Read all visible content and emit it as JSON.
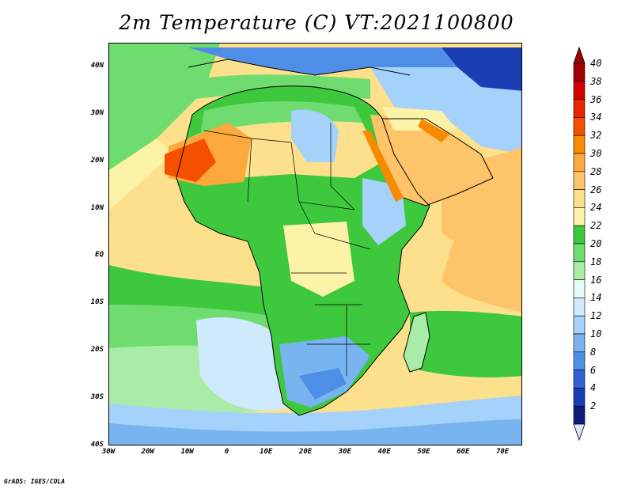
{
  "title": "2m Temperature (C) VT:2021100800",
  "credit": "GrADS: IGES/COLA",
  "map": {
    "lon_range": [
      -30,
      75
    ],
    "lat_range": [
      -40,
      45
    ],
    "lat_ticks": [
      {
        "value": 40,
        "label": "40N"
      },
      {
        "value": 30,
        "label": "30N"
      },
      {
        "value": 20,
        "label": "20N"
      },
      {
        "value": 10,
        "label": "10N"
      },
      {
        "value": 0,
        "label": "EQ"
      },
      {
        "value": -10,
        "label": "10S"
      },
      {
        "value": -20,
        "label": "20S"
      },
      {
        "value": -30,
        "label": "30S"
      },
      {
        "value": -40,
        "label": "40S"
      }
    ],
    "lon_ticks": [
      {
        "value": -30,
        "label": "30W"
      },
      {
        "value": -20,
        "label": "20W"
      },
      {
        "value": -10,
        "label": "10W"
      },
      {
        "value": 0,
        "label": "0"
      },
      {
        "value": 10,
        "label": "10E"
      },
      {
        "value": 20,
        "label": "20E"
      },
      {
        "value": 30,
        "label": "30E"
      },
      {
        "value": 40,
        "label": "40E"
      },
      {
        "value": 50,
        "label": "50E"
      },
      {
        "value": 60,
        "label": "60E"
      },
      {
        "value": 70,
        "label": "70E"
      }
    ]
  },
  "colorbar": {
    "labels": [
      "40",
      "38",
      "36",
      "34",
      "32",
      "30",
      "28",
      "26",
      "24",
      "22",
      "20",
      "18",
      "16",
      "14",
      "12",
      "10",
      "8",
      "6",
      "4",
      "2"
    ],
    "colors": [
      "#a00000",
      "#d70000",
      "#ea2600",
      "#f55000",
      "#f88a00",
      "#fca83c",
      "#fdc46a",
      "#fde08c",
      "#fdf3a8",
      "#3ec83e",
      "#6fdc6f",
      "#a8eca8",
      "#e6fcf6",
      "#cfeafc",
      "#a5d2fa",
      "#78b4f0",
      "#4f8ee6",
      "#3064d4",
      "#1a3fb4",
      "#101a78"
    ],
    "top_arrow_color": "#a00000",
    "bottom_arrow_color": "#e0e0f8"
  },
  "regions": {
    "ocean_colors": {
      "north_atlantic": "#6fdc6f",
      "tropical_atlantic": "#fde08c",
      "south_atlantic_cool": "#cfeafc",
      "southern_ocean": "#78b4f0",
      "indian_ocean": "#fdc46a",
      "mediterranean": "#6fdc6f",
      "red_sea": "#f88a00"
    },
    "land_colors": {
      "sahara_north": "#6fdc6f",
      "sahara_central": "#fde08c",
      "mauritania_hot": "#f55000",
      "sahel": "#3ec83e",
      "central_africa": "#3ec83e",
      "ethiopian_highlands": "#a5d2fa",
      "southern_africa": "#78b4f0",
      "europe": "#4f8ee6",
      "arabia": "#fdc46a",
      "iran": "#78b4f0",
      "madagascar": "#a8eca8"
    }
  }
}
